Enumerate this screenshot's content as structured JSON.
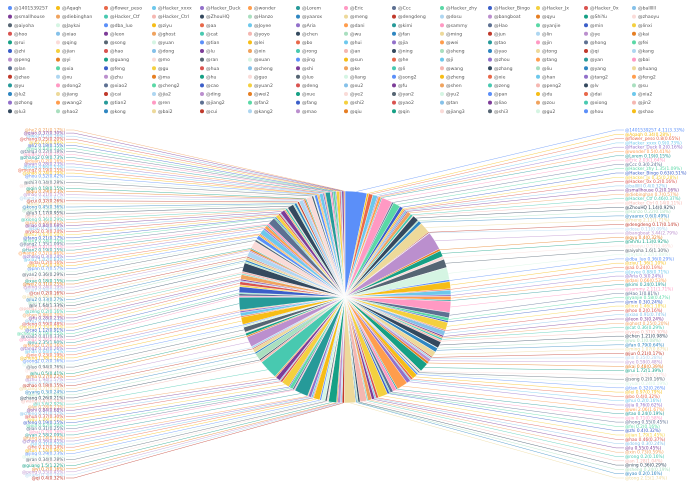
{
  "chart_data": {
    "type": "pie",
    "title": "",
    "legend_position": "top",
    "series": [
      {
        "name": "@1401539257",
        "value": 4.11
      },
      {
        "name": "@Aqaqh",
        "value": 0.34
      },
      {
        "name": "@flower_peso",
        "value": 0.8
      },
      {
        "name": "@Hacker_xxxx",
        "value": 0.9
      },
      {
        "name": "@Hacker_Duck",
        "value": 0.2
      },
      {
        "name": "@wonder",
        "value": 0.5
      },
      {
        "name": "@Lorem",
        "value": 0.19
      },
      {
        "name": "@Eric",
        "value": 2.03
      },
      {
        "name": "@Ccc",
        "value": 0.3
      },
      {
        "name": "@Hacker_zhy",
        "value": 1.35
      },
      {
        "name": "@Hacker_Bingo",
        "value": 0.63
      },
      {
        "name": "@Hacker_Jx",
        "value": 0.35
      },
      {
        "name": "@Hacker_0x",
        "value": 0.2
      },
      {
        "name": "@ballllll",
        "value": 0.4
      },
      {
        "name": "@smallhouse",
        "value": 0.2
      },
      {
        "name": "@diebinghan",
        "value": 0.7
      },
      {
        "name": "@Hacker_Ctf",
        "value": 0.46
      },
      {
        "name": "@Hacker_Ctrl",
        "value": 0.14
      },
      {
        "name": "@ZhouHQ",
        "value": 1.14
      },
      {
        "name": "@Hanzo",
        "value": 0.22
      },
      {
        "name": "@yaarox",
        "value": 0.6
      },
      {
        "name": "@meng",
        "value": 2.11
      },
      {
        "name": "@dengdeng",
        "value": 0.17
      },
      {
        "name": "@dosu",
        "value": 0.11
      },
      {
        "name": "@bangboat",
        "value": 3.44
      },
      {
        "name": "@qyu",
        "value": 0.4
      },
      {
        "name": "@ShiYu",
        "value": 1.13
      },
      {
        "name": "@zhaoyu",
        "value": 0.57
      },
      {
        "name": "@aiyoha",
        "value": 1.6
      },
      {
        "name": "@Jaykai",
        "value": 2.32
      },
      {
        "name": "@dba_luo",
        "value": 0.36
      },
      {
        "name": "@ziyu",
        "value": 1.36
      },
      {
        "name": "@aa",
        "value": 0.24
      },
      {
        "name": "@Joyee",
        "value": 0.88
      },
      {
        "name": "@Aria",
        "value": 0.3
      },
      {
        "name": "@dani",
        "value": 0.66
      },
      {
        "name": "@kimi",
        "value": 0.24
      },
      {
        "name": "@sammy",
        "value": 2.11
      },
      {
        "name": "@Hao",
        "value": 1.0
      },
      {
        "name": "@yanjie",
        "value": 0.58
      },
      {
        "name": "@min",
        "value": 0.3
      },
      {
        "name": "@linxi",
        "value": 1.46
      },
      {
        "name": "@hoo",
        "value": 0.2
      },
      {
        "name": "@xiao",
        "value": 0.91
      },
      {
        "name": "@leon",
        "value": 0.3
      },
      {
        "name": "@ghost",
        "value": 0.25
      },
      {
        "name": "@cat",
        "value": 0.36
      },
      {
        "name": "@yoyo",
        "value": 0.37
      },
      {
        "name": "@chen",
        "value": 1.21
      },
      {
        "name": "@wu",
        "value": 0.1
      },
      {
        "name": "@fan",
        "value": 0.79
      },
      {
        "name": "@ming",
        "value": 1.07
      },
      {
        "name": "@jun",
        "value": 0.21
      },
      {
        "name": "@lin",
        "value": 0.35
      },
      {
        "name": "@ye",
        "value": 0.59
      },
      {
        "name": "@kai",
        "value": 0.48
      },
      {
        "name": "@rui",
        "value": 1.72
      },
      {
        "name": "@qing",
        "value": 0.33
      },
      {
        "name": "@song",
        "value": 0.2
      },
      {
        "name": "@yuan",
        "value": 0.24
      },
      {
        "name": "@tian",
        "value": 0.32
      },
      {
        "name": "@lei",
        "value": 0.97
      },
      {
        "name": "@bo",
        "value": 0.4
      },
      {
        "name": "@hui",
        "value": 0.2
      },
      {
        "name": "@jia",
        "value": 0.76
      },
      {
        "name": "@wei",
        "value": 2.06
      },
      {
        "name": "@tao",
        "value": 0.24
      },
      {
        "name": "@jin",
        "value": 0.71
      },
      {
        "name": "@hong",
        "value": 0.55
      },
      {
        "name": "@fei",
        "value": 0.2
      },
      {
        "name": "@zhi",
        "value": 0.4
      },
      {
        "name": "@jian",
        "value": 1.79
      },
      {
        "name": "@hao",
        "value": 0.46
      },
      {
        "name": "@dong",
        "value": 0.3
      },
      {
        "name": "@lu",
        "value": 0.55
      },
      {
        "name": "@xin",
        "value": 0.73
      },
      {
        "name": "@rong",
        "value": 0.2
      },
      {
        "name": "@an",
        "value": 1.28
      },
      {
        "name": "@ning",
        "value": 0.36
      },
      {
        "name": "@sheng",
        "value": 0.24
      },
      {
        "name": "@yao",
        "value": 0.2
      },
      {
        "name": "@tong",
        "value": 2.15
      },
      {
        "name": "@qi",
        "value": 0.4
      },
      {
        "name": "@kang",
        "value": 0.3
      },
      {
        "name": "@peng",
        "value": 0.55
      },
      {
        "name": "@yi",
        "value": 0.2
      },
      {
        "name": "@guang",
        "value": 1.5
      },
      {
        "name": "@mo",
        "value": 0.3
      },
      {
        "name": "@ran",
        "value": 0.34
      },
      {
        "name": "@xuan",
        "value": 0.73
      },
      {
        "name": "@jing",
        "value": 0.29
      },
      {
        "name": "@sun",
        "value": 1.18
      },
      {
        "name": "@he",
        "value": 0.17
      },
      {
        "name": "@ji",
        "value": 0.31
      },
      {
        "name": "@zhou",
        "value": 0.56
      },
      {
        "name": "@tang",
        "value": 0.14
      },
      {
        "name": "@yan",
        "value": 2.58
      },
      {
        "name": "@bai",
        "value": 0.2
      },
      {
        "name": "@lan",
        "value": 0.31
      },
      {
        "name": "@xia",
        "value": 0.62
      },
      {
        "name": "@feng",
        "value": 0.19
      },
      {
        "name": "@gu",
        "value": 1.49
      },
      {
        "name": "@hua",
        "value": 0.37
      },
      {
        "name": "@cheng",
        "value": 0.21
      },
      {
        "name": "@shi",
        "value": 0.84
      },
      {
        "name": "@ke",
        "value": 0.28
      },
      {
        "name": "@li",
        "value": 3.6
      },
      {
        "name": "@wang",
        "value": 0.42
      },
      {
        "name": "@zhang",
        "value": 0.26
      },
      {
        "name": "@liu",
        "value": 1.23
      },
      {
        "name": "@yang",
        "value": 0.3
      },
      {
        "name": "@huang",
        "value": 0.71
      },
      {
        "name": "@zhao",
        "value": 0.18
      },
      {
        "name": "@xu",
        "value": 0.38
      },
      {
        "name": "@zhu",
        "value": 1.94
      },
      {
        "name": "@ma",
        "value": 0.27
      },
      {
        "name": "@hu",
        "value": 0.5
      },
      {
        "name": "@guo",
        "value": 0.22
      },
      {
        "name": "@luo",
        "value": 0.94
      },
      {
        "name": "@liang",
        "value": 0.33
      },
      {
        "name": "@song2",
        "value": 0.2
      },
      {
        "name": "@zheng",
        "value": 1.38
      },
      {
        "name": "@xie",
        "value": 0.23
      },
      {
        "name": "@han",
        "value": 0.64
      },
      {
        "name": "@tang2",
        "value": 0.32
      },
      {
        "name": "@feng2",
        "value": 0.2
      },
      {
        "name": "@yu",
        "value": 2.35
      },
      {
        "name": "@dong2",
        "value": 0.26
      },
      {
        "name": "@xiao2",
        "value": 0.41
      },
      {
        "name": "@cheng2",
        "value": 0.19
      },
      {
        "name": "@cao",
        "value": 1.12
      },
      {
        "name": "@yuan2",
        "value": 0.35
      },
      {
        "name": "@deng",
        "value": 0.59
      },
      {
        "name": "@xu2",
        "value": 0.21
      },
      {
        "name": "@fu",
        "value": 0.28
      },
      {
        "name": "@shen",
        "value": 0.86
      },
      {
        "name": "@zeng",
        "value": 0.2
      },
      {
        "name": "@peng2",
        "value": 0.39
      },
      {
        "name": "@lv",
        "value": 1.64
      },
      {
        "name": "@su",
        "value": 0.27
      },
      {
        "name": "@lu2",
        "value": 0.33
      },
      {
        "name": "@jiang",
        "value": 0.49
      },
      {
        "name": "@cai",
        "value": 0.2
      },
      {
        "name": "@jia2",
        "value": 0.98
      },
      {
        "name": "@ding",
        "value": 0.24
      },
      {
        "name": "@wei2",
        "value": 0.31
      },
      {
        "name": "@xue",
        "value": 0.18
      },
      {
        "name": "@ye2",
        "value": 1.43
      },
      {
        "name": "@yan2",
        "value": 0.36
      },
      {
        "name": "@yu2",
        "value": 0.22
      },
      {
        "name": "@pan",
        "value": 0.7
      },
      {
        "name": "@du",
        "value": 0.25
      },
      {
        "name": "@dai",
        "value": 0.2
      },
      {
        "name": "@xia2",
        "value": 1.02
      },
      {
        "name": "@zhong",
        "value": 0.3
      },
      {
        "name": "@wang2",
        "value": 0.57
      },
      {
        "name": "@tian2",
        "value": 0.19
      },
      {
        "name": "@ren",
        "value": 0.41
      },
      {
        "name": "@jiang2",
        "value": 1.35
      },
      {
        "name": "@fan2",
        "value": 0.24
      },
      {
        "name": "@fang",
        "value": 0.21
      },
      {
        "name": "@shi2",
        "value": 0.62
      },
      {
        "name": "@yao2",
        "value": 0.3
      },
      {
        "name": "@tan",
        "value": 0.2
      },
      {
        "name": "@liao",
        "value": 0.84
      },
      {
        "name": "@zou",
        "value": 0.26
      },
      {
        "name": "@xiong",
        "value": 0.36
      },
      {
        "name": "@jin2",
        "value": 0.17
      },
      {
        "name": "@lu3",
        "value": 1.17
      },
      {
        "name": "@hao2",
        "value": 0.23
      },
      {
        "name": "@kong",
        "value": 0.45
      },
      {
        "name": "@bai2",
        "value": 0.2
      },
      {
        "name": "@cui",
        "value": 0.32
      },
      {
        "name": "@kang2",
        "value": 0.78
      },
      {
        "name": "@mao",
        "value": 0.21
      },
      {
        "name": "@qiu",
        "value": 0.29
      },
      {
        "name": "@qin",
        "value": 0.18
      },
      {
        "name": "@jiang3",
        "value": 1.08
      },
      {
        "name": "@shi3",
        "value": 0.34
      },
      {
        "name": "@gu2",
        "value": 0.2
      },
      {
        "name": "@hou",
        "value": 0.52
      },
      {
        "name": "@shao",
        "value": 0.24
      },
      {
        "name": "@meng2",
        "value": 0.19
      },
      {
        "name": "@long",
        "value": 0.66
      },
      {
        "name": "@wan",
        "value": 0.28
      },
      {
        "name": "@duan",
        "value": 0.2
      },
      {
        "name": "@zhang2",
        "value": 0.9
      },
      {
        "name": "@qian",
        "value": 0.31
      },
      {
        "name": "@tang3",
        "value": 0.22
      },
      {
        "name": "@yin",
        "value": 0.43
      },
      {
        "name": "@li2",
        "value": 0.18
      },
      {
        "name": "@yi2",
        "value": 0.6
      },
      {
        "name": "@chang",
        "value": 0.25
      },
      {
        "name": "@wu2",
        "value": 0.2
      },
      {
        "name": "@qiao",
        "value": 0.37
      },
      {
        "name": "@he2",
        "value": 0.21
      }
    ],
    "colors": [
      "#5b8ff9",
      "#f6bd16",
      "#e8684a",
      "#6dc8ec",
      "#9270ca",
      "#ff9d4d",
      "#269a99",
      "#ff99c3",
      "#5d7092",
      "#5ad8a6",
      "#3b5ec9",
      "#f4d03f",
      "#d9534f",
      "#85c1e9",
      "#7d3c98",
      "#f0a35e",
      "#48c9b0",
      "#f5b7b1",
      "#34495e",
      "#a9dfbf",
      "#2e86c1",
      "#edd99a",
      "#c0392b",
      "#aed6f1",
      "#bb8fce",
      "#e67e22",
      "#16a085",
      "#fadbd8",
      "#566573",
      "#d5f5e3"
    ]
  }
}
